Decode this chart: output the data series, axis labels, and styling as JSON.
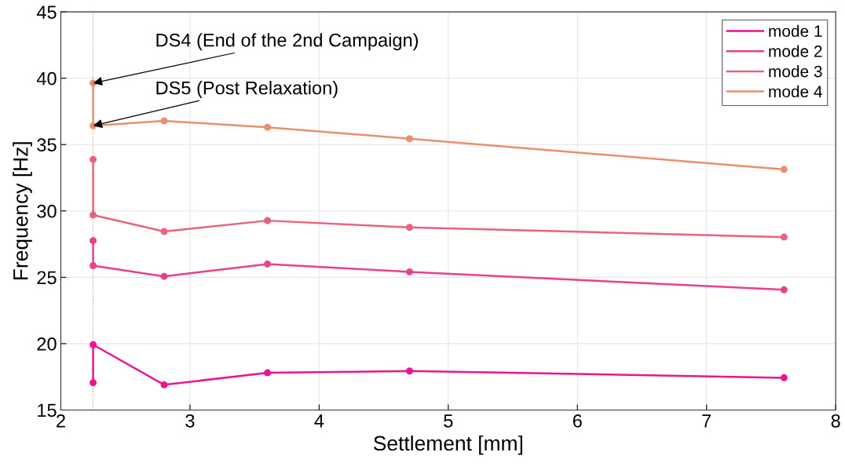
{
  "chart_data": {
    "type": "line",
    "xlabel": "Settlement [mm]",
    "ylabel": "Frequency [Hz]",
    "series": [
      {
        "name": "mode 1",
        "color": "#e8168f",
        "x": [
          2.25,
          2.25,
          2.8,
          3.6,
          4.7,
          7.6
        ],
        "values": [
          17.06,
          19.92,
          16.9,
          17.8,
          17.94,
          17.43
        ]
      },
      {
        "name": "mode 2",
        "color": "#e8408a",
        "x": [
          2.25,
          2.25,
          2.8,
          3.6,
          4.7,
          7.6
        ],
        "values": [
          27.76,
          25.88,
          25.07,
          26.0,
          25.41,
          24.06
        ]
      },
      {
        "name": "mode 3",
        "color": "#e8637e",
        "x": [
          2.25,
          2.25,
          2.8,
          3.6,
          4.7,
          7.6
        ],
        "values": [
          33.88,
          29.69,
          28.45,
          29.27,
          28.76,
          28.03
        ]
      },
      {
        "name": "mode 4",
        "color": "#e8906e",
        "x": [
          2.25,
          2.25,
          2.8,
          3.6,
          4.7,
          7.6
        ],
        "values": [
          39.63,
          36.42,
          36.79,
          36.3,
          35.44,
          33.13
        ]
      }
    ],
    "xlim": [
      2,
      8
    ],
    "xticks": [
      2,
      3,
      4,
      5,
      6,
      7,
      8
    ],
    "ylim": [
      15,
      45
    ],
    "yticks": [
      15,
      20,
      25,
      30,
      35,
      40,
      45
    ],
    "ref_lines": [
      {
        "axis": "x",
        "value": 2.25,
        "color": "#e07a7a",
        "line_style": "dotted"
      }
    ],
    "annotations": [
      {
        "text": "DS4 (End of the 2nd Campaign)",
        "x": 2.25,
        "y": 39.63
      },
      {
        "text": "DS5 (Post Relaxation)",
        "x": 2.25,
        "y": 36.42
      }
    ],
    "grid": true,
    "legend": "top right",
    "marker": "circle",
    "line_style": "solid"
  }
}
